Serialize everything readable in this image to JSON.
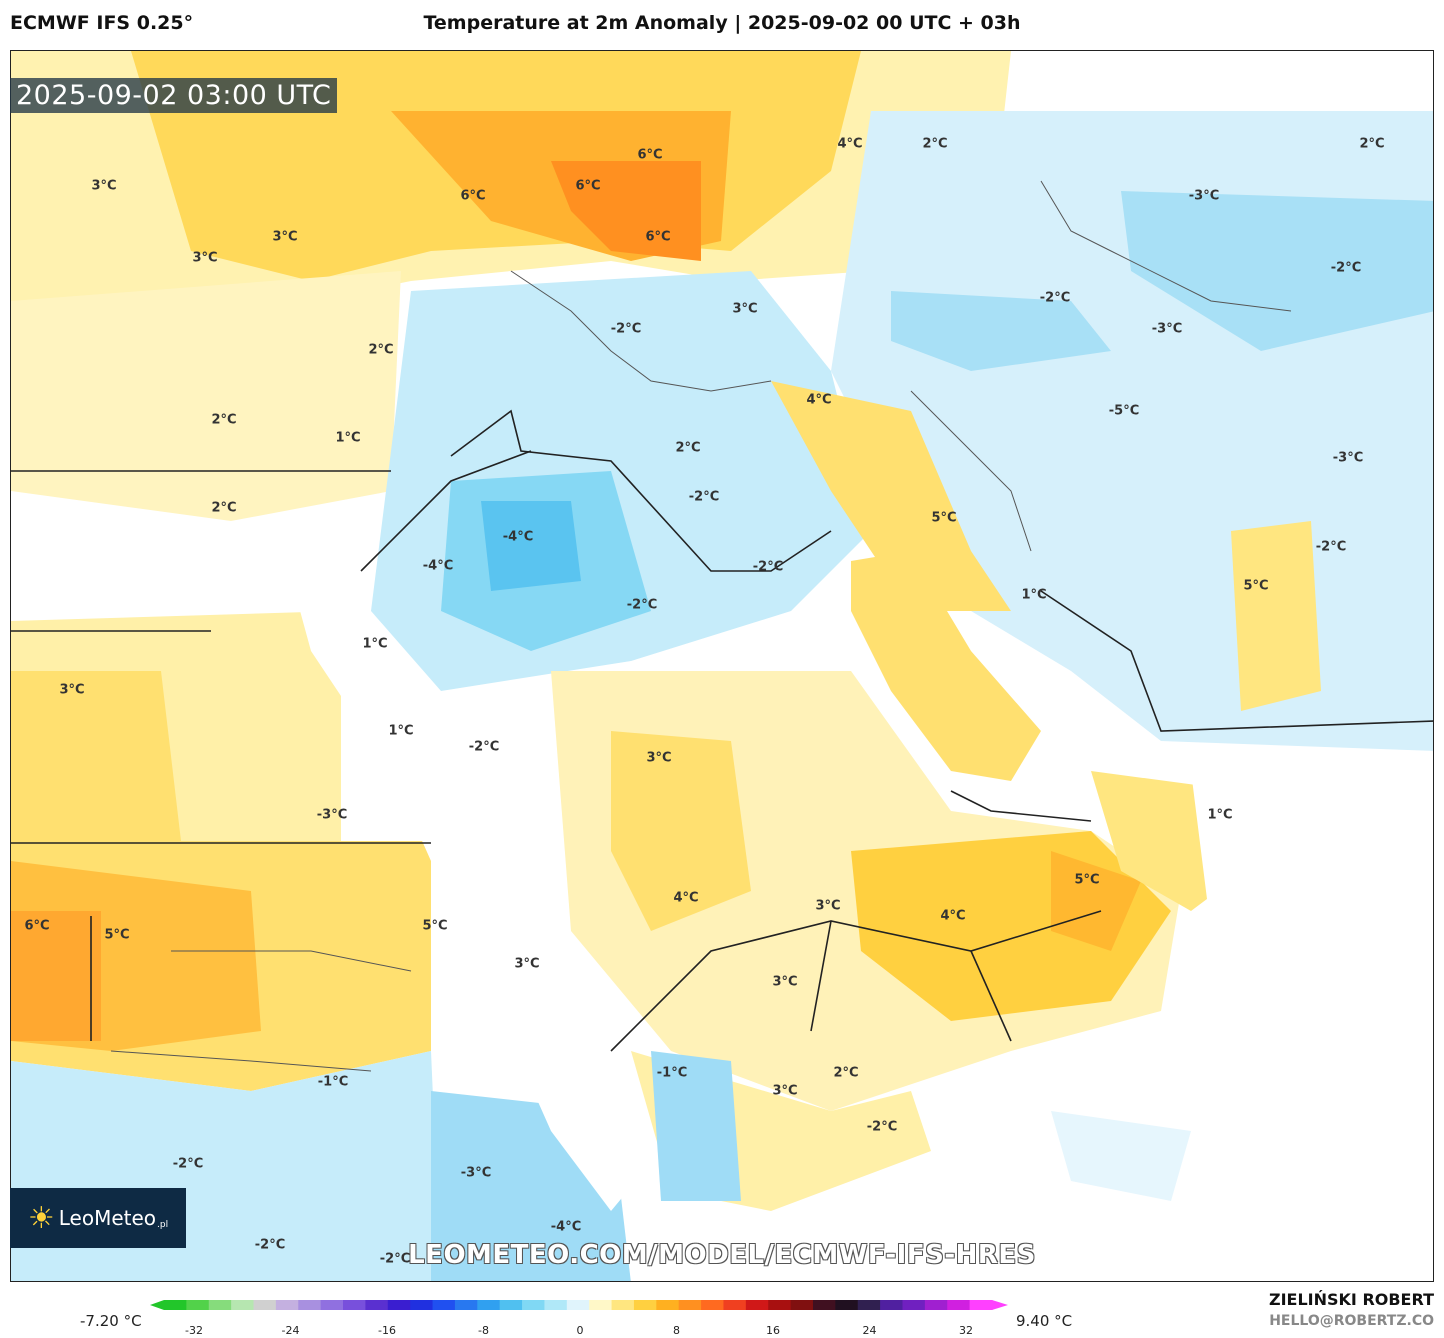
{
  "header": {
    "model": "ECMWF IFS 0.25°",
    "title": "Temperature at 2m Anomaly | 2025-09-02 00 UTC + 03h"
  },
  "map": {
    "timestamp": "2025-09-02 03:00 UTC",
    "labels": [
      {
        "text": "3°C"
      },
      {
        "text": "3°C"
      },
      {
        "text": "3°C"
      },
      {
        "text": "6°C"
      },
      {
        "text": "6°C"
      },
      {
        "text": "6°C"
      },
      {
        "text": "6°C"
      },
      {
        "text": "4°C"
      },
      {
        "text": "2°C"
      },
      {
        "text": "2°C"
      },
      {
        "text": "-3°C"
      },
      {
        "text": "-2°C"
      },
      {
        "text": "-2°C"
      },
      {
        "text": "-3°C"
      },
      {
        "text": "3°C"
      },
      {
        "text": "2°C"
      },
      {
        "text": "-2°C"
      },
      {
        "text": "4°C"
      },
      {
        "text": "-5°C"
      },
      {
        "text": "-3°C"
      },
      {
        "text": "2°C"
      },
      {
        "text": "1°C"
      },
      {
        "text": "2°C"
      },
      {
        "text": "-2°C"
      },
      {
        "text": "-4°C"
      },
      {
        "text": "-2°C"
      },
      {
        "text": "5°C"
      },
      {
        "text": "-2°C"
      },
      {
        "text": "2°C"
      },
      {
        "text": "-4°C"
      },
      {
        "text": "-2°C"
      },
      {
        "text": "1°C"
      },
      {
        "text": "5°C"
      },
      {
        "text": "1°C"
      },
      {
        "text": "3°C"
      },
      {
        "text": "1°C"
      },
      {
        "text": "-2°C"
      },
      {
        "text": "3°C"
      },
      {
        "text": "-3°C"
      },
      {
        "text": "1°C"
      },
      {
        "text": "5°C"
      },
      {
        "text": "4°C"
      },
      {
        "text": "3°C"
      },
      {
        "text": "4°C"
      },
      {
        "text": "6°C"
      },
      {
        "text": "5°C"
      },
      {
        "text": "5°C"
      },
      {
        "text": "3°C"
      },
      {
        "text": "3°C"
      },
      {
        "text": "-1°C"
      },
      {
        "text": "-1°C"
      },
      {
        "text": "2°C"
      },
      {
        "text": "3°C"
      },
      {
        "text": "-2°C"
      },
      {
        "text": "-2°C"
      },
      {
        "text": "-3°C"
      },
      {
        "text": "-4°C"
      },
      {
        "text": "-2°C"
      },
      {
        "text": "-2°C"
      }
    ]
  },
  "logo": {
    "name": "LeoMeteo",
    "suffix": ".pl"
  },
  "watermark_url": "LEOMETEO.COM/MODEL/ECMWF-IFS-HRES",
  "colorbar": {
    "min_label": "-7.20 °C",
    "max_label": "9.40 °C",
    "ticks": [
      "-32",
      "-24",
      "-16",
      "-8",
      "0",
      "8",
      "16",
      "24",
      "32"
    ],
    "colors": [
      "#22c62a",
      "#52d24a",
      "#86dc7c",
      "#b6e6b0",
      "#d0d0d0",
      "#c4b0e0",
      "#a890e0",
      "#9070e0",
      "#7850dc",
      "#5a30d0",
      "#3a1ed0",
      "#2030e0",
      "#2050f0",
      "#2878f0",
      "#30a0f0",
      "#50c0f0",
      "#80d8f4",
      "#b0e8f8",
      "#e0f4fc",
      "#fff8c8",
      "#ffe680",
      "#ffd040",
      "#ffb020",
      "#ff9020",
      "#ff6a20",
      "#f04020",
      "#d01818",
      "#a81010",
      "#801010",
      "#401020",
      "#201020",
      "#302050",
      "#5020a0",
      "#7020c0",
      "#a020d0",
      "#d020e0",
      "#ff40ff"
    ]
  },
  "footer": {
    "author": "ZIELIŃSKI ROBERT",
    "email": "HELLO@ROBERTZ.CO"
  }
}
